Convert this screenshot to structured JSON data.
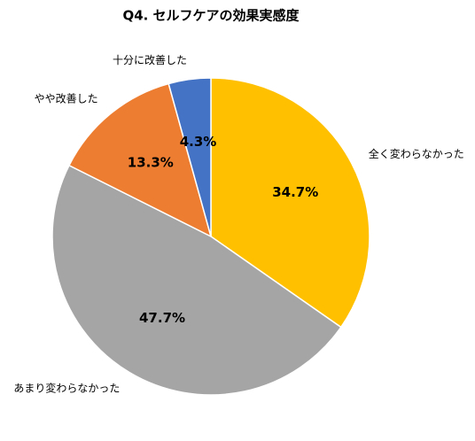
{
  "chart_data": {
    "type": "pie",
    "title": "Q4. セルフケアの効果実感度",
    "categories": [
      "全く変わらなかった",
      "あまり変わらなかった",
      "やや改善した",
      "十分に改善した"
    ],
    "values": [
      34.7,
      47.7,
      13.3,
      4.3
    ],
    "value_labels": [
      "34.7%",
      "47.7%",
      "13.3%",
      "4.3%"
    ],
    "colors": [
      "#ffc000",
      "#a5a5a5",
      "#ed7d31",
      "#4472c4"
    ]
  }
}
